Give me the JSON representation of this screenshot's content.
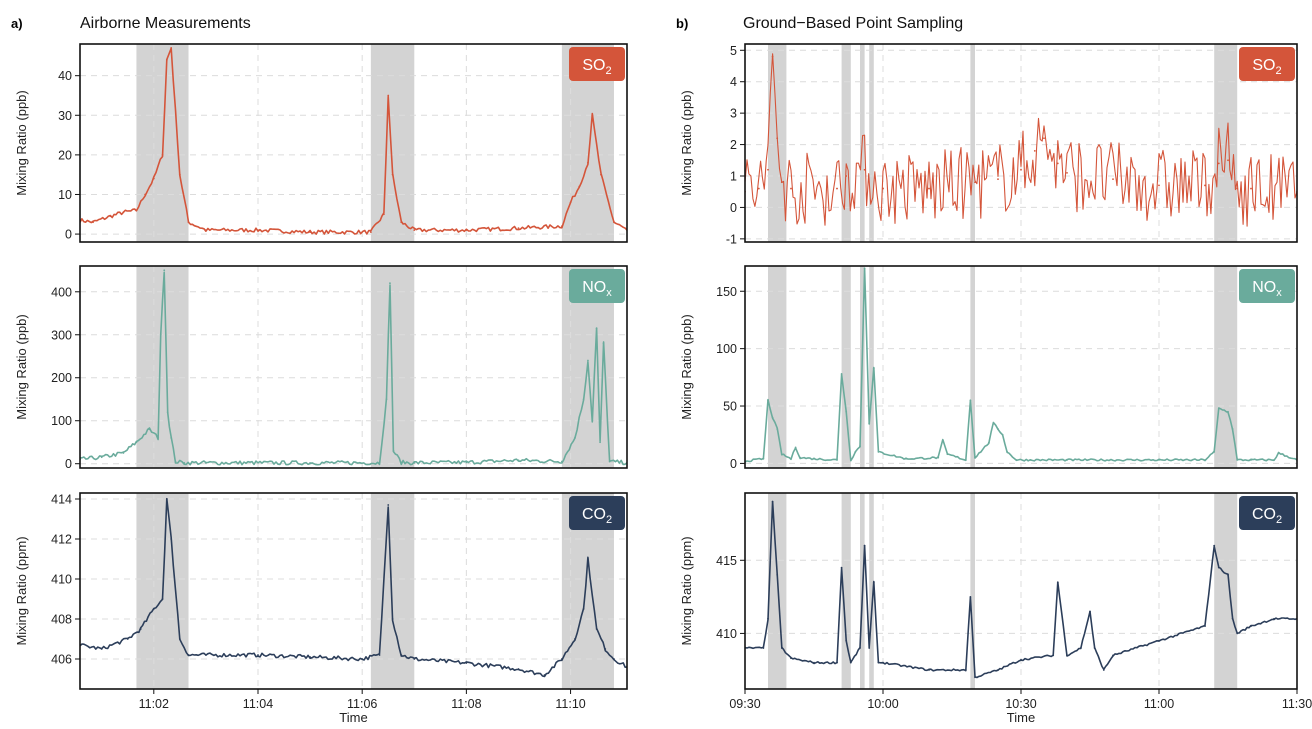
{
  "figure": {
    "panel_a": {
      "tag": "a)",
      "title": "Airborne Measurements"
    },
    "panel_b": {
      "tag": "b)",
      "title": "Ground−Based Point Sampling"
    }
  },
  "colors": {
    "so2": "#d4553a",
    "nox": "#6aab9c",
    "co2": "#2c3e5a",
    "shade": "#d3d3d3"
  },
  "chart_data": [
    {
      "id": "a_so2",
      "panel": "a",
      "type": "line",
      "badge": {
        "main": "SO",
        "sub": "2",
        "color": "#d4553a"
      },
      "ylabel": "Mixing Ratio (ppb)",
      "xlabel": "",
      "xlim": [
        "11:00:35",
        "11:11:05"
      ],
      "ylim": [
        -2,
        48
      ],
      "yticks": [
        0,
        10,
        20,
        30,
        40
      ],
      "xticks": [],
      "xtick_labels": [],
      "shaded": [
        [
          "11:01:40",
          "11:02:40"
        ],
        [
          "11:06:10",
          "11:07:00"
        ],
        [
          "11:09:50",
          "11:10:50"
        ]
      ],
      "x": [
        "11:00:35",
        "11:00:50",
        "11:01:10",
        "11:01:25",
        "11:01:40",
        "11:01:50",
        "11:02:00",
        "11:02:10",
        "11:02:15",
        "11:02:20",
        "11:02:30",
        "11:02:40",
        "11:03:00",
        "11:04:00",
        "11:05:00",
        "11:06:10",
        "11:06:25",
        "11:06:30",
        "11:06:35",
        "11:06:45",
        "11:07:00",
        "11:08:00",
        "11:09:00",
        "11:09:50",
        "11:10:00",
        "11:10:10",
        "11:10:20",
        "11:10:25",
        "11:10:35",
        "11:10:50",
        "11:11:05"
      ],
      "y": [
        3.5,
        3,
        4.5,
        5.5,
        6,
        10,
        14,
        20,
        44,
        47,
        15,
        3,
        1,
        1,
        0.5,
        0.5,
        5,
        35,
        15,
        3,
        1,
        1,
        1.5,
        2,
        8,
        12,
        18,
        30,
        15,
        3,
        1
      ]
    },
    {
      "id": "a_nox",
      "panel": "a",
      "type": "line",
      "badge": {
        "main": "NO",
        "sub": "x",
        "color": "#6aab9c"
      },
      "ylabel": "Mixing Ratio (ppb)",
      "xlabel": "",
      "xlim": [
        "11:00:35",
        "11:11:05"
      ],
      "ylim": [
        -10,
        460
      ],
      "yticks": [
        0,
        100,
        200,
        300,
        400
      ],
      "xticks": [],
      "xtick_labels": [],
      "shaded": [
        [
          "11:01:40",
          "11:02:40"
        ],
        [
          "11:06:10",
          "11:07:00"
        ],
        [
          "11:09:50",
          "11:10:50"
        ]
      ],
      "x": [
        "11:00:35",
        "11:01:00",
        "11:01:25",
        "11:01:40",
        "11:01:55",
        "11:02:05",
        "11:02:08",
        "11:02:12",
        "11:02:16",
        "11:02:20",
        "11:02:25",
        "11:02:35",
        "11:03:00",
        "11:05:00",
        "11:06:20",
        "11:06:28",
        "11:06:32",
        "11:06:36",
        "11:06:45",
        "11:07:00",
        "11:08:00",
        "11:09:00",
        "11:09:50",
        "11:10:05",
        "11:10:15",
        "11:10:20",
        "11:10:25",
        "11:10:30",
        "11:10:34",
        "11:10:38",
        "11:10:45",
        "11:11:05"
      ],
      "y": [
        10,
        15,
        25,
        50,
        80,
        60,
        300,
        450,
        120,
        60,
        5,
        2,
        2,
        2,
        2,
        150,
        420,
        30,
        3,
        2,
        3,
        8,
        5,
        60,
        150,
        240,
        100,
        315,
        50,
        280,
        5,
        2
      ]
    },
    {
      "id": "a_co2",
      "panel": "a",
      "type": "line",
      "badge": {
        "main": "CO",
        "sub": "2",
        "color": "#2c3e5a"
      },
      "ylabel": "Mixing Ratio (ppm)",
      "xlabel": "Time",
      "xlim": [
        "11:00:35",
        "11:11:05"
      ],
      "ylim": [
        404.5,
        414.3
      ],
      "yticks": [
        406,
        408,
        410,
        412,
        414
      ],
      "xticks": [
        "11:02:00",
        "11:04:00",
        "11:06:00",
        "11:08:00",
        "11:10:00"
      ],
      "xtick_labels": [
        "11:02",
        "11:04",
        "11:06",
        "11:08",
        "11:10"
      ],
      "shaded": [
        [
          "11:01:40",
          "11:02:40"
        ],
        [
          "11:06:10",
          "11:07:00"
        ],
        [
          "11:09:50",
          "11:10:50"
        ]
      ],
      "x": [
        "11:00:35",
        "11:01:00",
        "11:01:30",
        "11:01:45",
        "11:02:00",
        "11:02:10",
        "11:02:15",
        "11:02:20",
        "11:02:30",
        "11:02:40",
        "11:03:00",
        "11:04:00",
        "11:05:00",
        "11:06:00",
        "11:06:20",
        "11:06:30",
        "11:06:35",
        "11:06:45",
        "11:07:00",
        "11:08:00",
        "11:09:00",
        "11:09:30",
        "11:09:50",
        "11:10:05",
        "11:10:15",
        "11:10:20",
        "11:10:30",
        "11:10:40",
        "11:10:50",
        "11:11:05"
      ],
      "y": [
        406.7,
        406.5,
        407,
        407.5,
        408.5,
        409,
        414,
        412,
        407,
        406.2,
        406.2,
        406.2,
        406.1,
        406,
        406.2,
        413.7,
        408,
        406.2,
        406,
        405.8,
        405.5,
        405.2,
        406,
        407,
        408.5,
        411,
        407.5,
        406.5,
        406,
        405.6
      ]
    },
    {
      "id": "b_so2",
      "panel": "b",
      "type": "line",
      "badge": {
        "main": "SO",
        "sub": "2",
        "color": "#d4553a"
      },
      "ylabel": "Mixing Ratio (ppb)",
      "xlabel": "",
      "xlim": [
        "09:30",
        "11:30"
      ],
      "ylim": [
        -1.1,
        5.2
      ],
      "yticks": [
        -1,
        0,
        1,
        2,
        3,
        4,
        5
      ],
      "xticks": [],
      "xtick_labels": [],
      "shaded": [
        [
          "09:35",
          "09:39"
        ],
        [
          "09:51",
          "09:53"
        ],
        [
          "09:55",
          "09:56"
        ],
        [
          "09:57",
          "09:58"
        ],
        [
          "10:19",
          "10:20"
        ],
        [
          "11:12",
          "11:17"
        ]
      ],
      "x": [
        "09:30",
        "09:33",
        "09:35",
        "09:36",
        "09:37",
        "09:38",
        "09:40",
        "09:50",
        "09:52",
        "09:56",
        "10:00",
        "10:10",
        "10:20",
        "10:25",
        "10:30",
        "10:33",
        "10:35",
        "10:38",
        "10:40",
        "10:50",
        "11:00",
        "11:10",
        "11:13",
        "11:15",
        "11:17",
        "11:20",
        "11:30"
      ],
      "y": [
        0.5,
        0.6,
        1.2,
        4.8,
        2.2,
        0.8,
        0.6,
        0.6,
        1.0,
        1.2,
        0.6,
        0.6,
        0.8,
        0.9,
        1.2,
        1.8,
        2.2,
        1.4,
        1.1,
        0.9,
        0.7,
        0.7,
        1.4,
        1.5,
        0.6,
        0.6,
        0.5
      ],
      "noise_band": [
        -1,
        1.6
      ]
    },
    {
      "id": "b_nox",
      "panel": "b",
      "type": "line",
      "badge": {
        "main": "NO",
        "sub": "x",
        "color": "#6aab9c"
      },
      "ylabel": "Mixing Ratio (ppb)",
      "xlabel": "",
      "xlim": [
        "09:30",
        "11:30"
      ],
      "ylim": [
        -4,
        172
      ],
      "yticks": [
        0,
        50,
        100,
        150
      ],
      "xticks": [],
      "xtick_labels": [],
      "shaded": [
        [
          "09:35",
          "09:39"
        ],
        [
          "09:51",
          "09:53"
        ],
        [
          "09:55",
          "09:56"
        ],
        [
          "09:57",
          "09:58"
        ],
        [
          "10:19",
          "10:20"
        ],
        [
          "11:12",
          "11:17"
        ]
      ],
      "x": [
        "09:30",
        "09:34",
        "09:35",
        "09:36",
        "09:37",
        "09:38",
        "09:40",
        "09:41",
        "09:42",
        "09:45",
        "09:50",
        "09:51",
        "09:52",
        "09:53",
        "09:54",
        "09:55",
        "09:56",
        "09:57",
        "09:58",
        "09:59",
        "10:05",
        "10:12",
        "10:13",
        "10:14",
        "10:18",
        "10:19",
        "10:20",
        "10:23",
        "10:24",
        "10:25",
        "10:26",
        "10:27",
        "10:29",
        "10:32",
        "10:40",
        "11:00",
        "11:10",
        "11:12",
        "11:13",
        "11:15",
        "11:16",
        "11:17",
        "11:20",
        "11:25",
        "11:26",
        "11:30"
      ],
      "y": [
        2,
        4,
        55,
        40,
        30,
        8,
        4,
        14,
        5,
        4,
        3,
        78,
        45,
        3,
        10,
        15,
        170,
        35,
        83,
        10,
        4,
        5,
        20,
        8,
        3,
        55,
        5,
        18,
        35,
        30,
        25,
        10,
        3,
        3,
        3,
        3,
        3,
        10,
        48,
        45,
        30,
        3,
        3,
        3,
        9,
        3
      ]
    },
    {
      "id": "b_co2",
      "panel": "b",
      "type": "line",
      "badge": {
        "main": "CO",
        "sub": "2",
        "color": "#2c3e5a"
      },
      "ylabel": "Mixing Ratio (ppm)",
      "xlabel": "Time",
      "xlim": [
        "09:30",
        "11:30"
      ],
      "ylim": [
        406.2,
        419.6
      ],
      "yticks": [
        410,
        415
      ],
      "xticks": [
        "09:30",
        "10:00",
        "10:30",
        "11:00",
        "11:30"
      ],
      "xtick_labels": [
        "09:30",
        "10:00",
        "10:30",
        "11:00",
        "11:30"
      ],
      "shaded": [
        [
          "09:35",
          "09:39"
        ],
        [
          "09:51",
          "09:53"
        ],
        [
          "09:55",
          "09:56"
        ],
        [
          "09:57",
          "09:58"
        ],
        [
          "10:19",
          "10:20"
        ],
        [
          "11:12",
          "11:17"
        ]
      ],
      "x": [
        "09:30",
        "09:34",
        "09:35",
        "09:36",
        "09:37",
        "09:38",
        "09:40",
        "09:45",
        "09:50",
        "09:51",
        "09:52",
        "09:53",
        "09:55",
        "09:56",
        "09:57",
        "09:58",
        "09:59",
        "10:00",
        "10:10",
        "10:18",
        "10:19",
        "10:20",
        "10:25",
        "10:30",
        "10:37",
        "10:38",
        "10:40",
        "10:43",
        "10:45",
        "10:46",
        "10:48",
        "10:50",
        "11:00",
        "11:10",
        "11:12",
        "11:13",
        "11:15",
        "11:16",
        "11:17",
        "11:20",
        "11:25",
        "11:30"
      ],
      "y": [
        409,
        409,
        411,
        419,
        414,
        409,
        408.3,
        408,
        408,
        414.5,
        409.5,
        408,
        409,
        416,
        409,
        413.5,
        408,
        408,
        407.5,
        407.5,
        412.5,
        407,
        407.5,
        408.2,
        408.5,
        413.5,
        408.5,
        409,
        411.5,
        409,
        407.5,
        408.5,
        409.5,
        410.5,
        416,
        414.5,
        414,
        411,
        410,
        410.5,
        411,
        411
      ]
    }
  ]
}
